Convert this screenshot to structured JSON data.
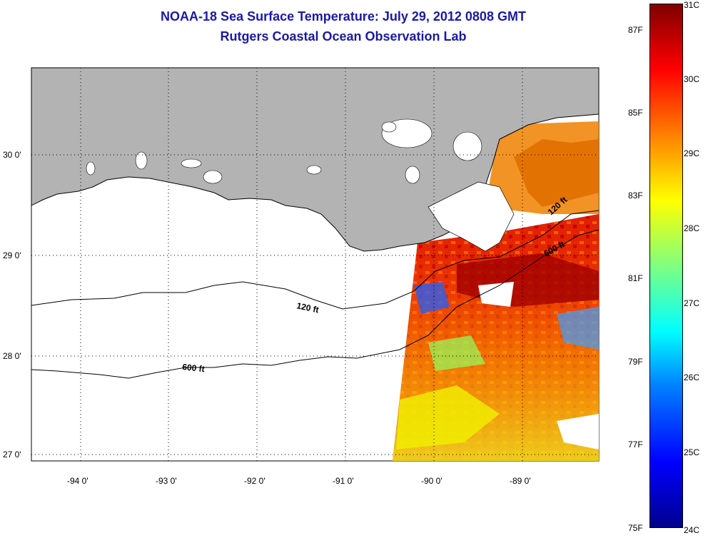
{
  "title": "NOAA-18 Sea Surface Temperature:  July 29, 2012 0808 GMT",
  "subtitle": "Rutgers Coastal Ocean Observation Lab",
  "map": {
    "lat_labels": [
      "30 0'",
      "29 0'",
      "28 0'",
      "27 0'"
    ],
    "lon_labels": [
      "-94 0'",
      "-93 0'",
      "-92 0'",
      "-91 0'",
      "-90 0'",
      "-89 0'"
    ],
    "contour_labels": [
      "120 ft",
      "600 ft",
      "120 ft",
      "600 ft"
    ]
  },
  "colorbar": {
    "fahrenheit": [
      "87F",
      "85F",
      "83F",
      "81F",
      "79F",
      "77F",
      "75F"
    ],
    "celsius": [
      "31C",
      "30C",
      "29C",
      "28C",
      "27C",
      "26C",
      "25C",
      "24C"
    ],
    "colors": [
      "#00008f",
      "#0000ff",
      "#00ffff",
      "#ffff00",
      "#ff0000",
      "#800000"
    ]
  }
}
